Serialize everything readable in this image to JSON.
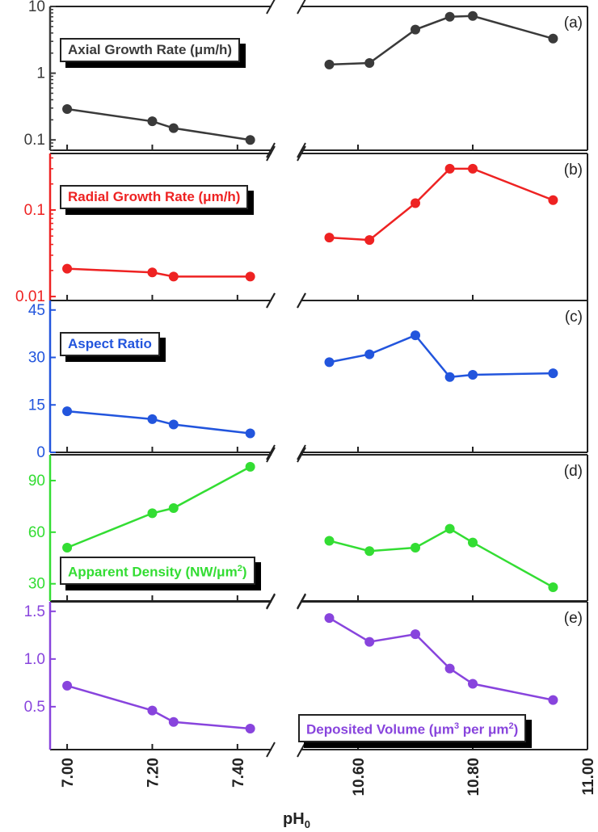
{
  "chart_data": {
    "type": "line",
    "x_axis": {
      "label_base": "pH",
      "label_sub": "0",
      "broken": true,
      "segments": [
        {
          "range": [
            6.96,
            7.48
          ],
          "ticks": [
            7.0,
            7.2,
            7.4
          ],
          "tick_labels": [
            "7.00",
            "7.20",
            "7.40"
          ]
        },
        {
          "range": [
            10.5,
            11.0
          ],
          "ticks": [
            10.6,
            10.8,
            11.0
          ],
          "tick_labels": [
            "10.60",
            "10.80",
            "11.00"
          ]
        }
      ]
    },
    "x_low": [
      7.0,
      7.2,
      7.25,
      7.43
    ],
    "x_high": [
      10.55,
      10.62,
      10.7,
      10.76,
      10.8,
      10.94
    ],
    "panels": [
      {
        "tag": "(a)",
        "color": "#3a3a3a",
        "legend": "Axial Growth Rate (μm/h)",
        "scale": "log",
        "ylim": [
          0.07,
          10
        ],
        "yticks": [
          0.1,
          1,
          10
        ],
        "ytick_labels": [
          "0.1",
          "1",
          "10"
        ],
        "values_low": [
          0.29,
          0.19,
          0.15,
          0.1
        ],
        "values_high": [
          1.35,
          1.42,
          4.5,
          7.0,
          7.2,
          3.3
        ]
      },
      {
        "tag": "(b)",
        "color": "#ee2222",
        "legend": "Radial Growth Rate (μm/h)",
        "scale": "log",
        "ylim": [
          0.009,
          0.45
        ],
        "yticks": [
          0.01,
          0.1
        ],
        "ytick_labels": [
          "0.01",
          "0.1"
        ],
        "values_low": [
          0.021,
          0.019,
          0.017,
          0.017
        ],
        "values_high": [
          0.048,
          0.045,
          0.12,
          0.3,
          0.3,
          0.13
        ]
      },
      {
        "tag": "(c)",
        "color": "#2255dd",
        "legend": "Aspect Ratio",
        "scale": "linear",
        "ylim": [
          0,
          48
        ],
        "yticks": [
          0,
          15,
          30,
          45
        ],
        "ytick_labels": [
          "0",
          "15",
          "30",
          "45"
        ],
        "values_low": [
          13.0,
          10.5,
          8.8,
          6.0
        ],
        "values_high": [
          28.5,
          31.0,
          37.0,
          23.8,
          24.5,
          25.0
        ]
      },
      {
        "tag": "(d)",
        "color": "#33dd33",
        "legend_main": "Apparent Density (NW/μm",
        "legend_sup": "2",
        "legend_end": ")",
        "scale": "linear",
        "ylim": [
          20,
          105
        ],
        "yticks": [
          30,
          60,
          90
        ],
        "ytick_labels": [
          "30",
          "60",
          "90"
        ],
        "values_low": [
          51,
          71,
          74,
          98
        ],
        "values_high": [
          55,
          49,
          51,
          62,
          54,
          28
        ]
      },
      {
        "tag": "(e)",
        "color": "#8844dd",
        "legend_main": "Deposited Volume (μm",
        "legend_sup": "3",
        "legend_mid": " per μm",
        "legend_sup2": "2",
        "legend_end": ")",
        "scale": "linear",
        "ylim": [
          0.05,
          1.6
        ],
        "yticks": [
          0.5,
          1.0,
          1.5
        ],
        "ytick_labels": [
          "0.5",
          "1.0",
          "1.5"
        ],
        "values_low": [
          0.72,
          0.46,
          0.34,
          0.27
        ],
        "values_high": [
          1.43,
          1.18,
          1.26,
          0.9,
          0.74,
          0.57
        ]
      }
    ]
  }
}
